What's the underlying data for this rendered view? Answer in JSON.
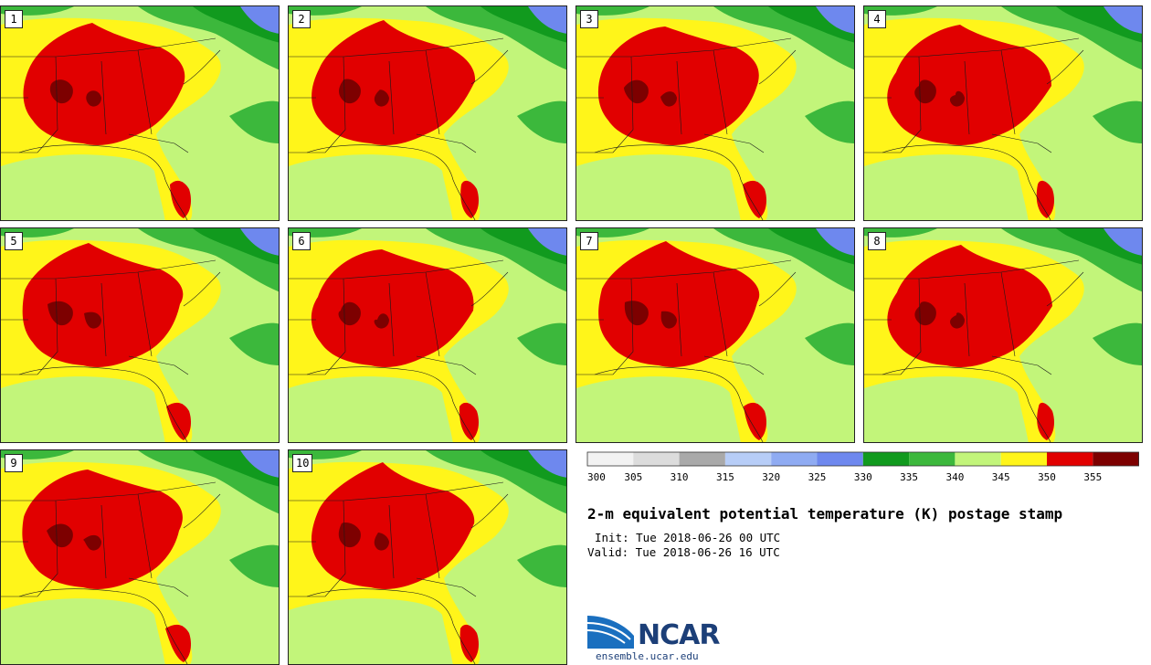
{
  "panels": [
    {
      "label": "1"
    },
    {
      "label": "2"
    },
    {
      "label": "3"
    },
    {
      "label": "4"
    },
    {
      "label": "5"
    },
    {
      "label": "6"
    },
    {
      "label": "7"
    },
    {
      "label": "8"
    },
    {
      "label": "9"
    },
    {
      "label": "10"
    }
  ],
  "colorbar": {
    "ticks": [
      "300",
      "305",
      "310",
      "315",
      "320",
      "325",
      "330",
      "335",
      "340",
      "345",
      "350",
      "355"
    ],
    "colors": [
      "#f2f2f2",
      "#dcdcdc",
      "#a9a9a9",
      "#b7cdf7",
      "#8fabf2",
      "#6e88ee",
      "#119a1e",
      "#3cb83c",
      "#c2f57a",
      "#fff51a",
      "#e10000",
      "#7d0000"
    ]
  },
  "title": "2-m equivalent potential temperature (K) postage stamp",
  "init": "Init: Tue 2018-06-26 00 UTC",
  "valid": "Valid: Tue 2018-06-26 16 UTC",
  "logo": {
    "text": "NCAR",
    "site": "ensemble.ucar.edu"
  }
}
